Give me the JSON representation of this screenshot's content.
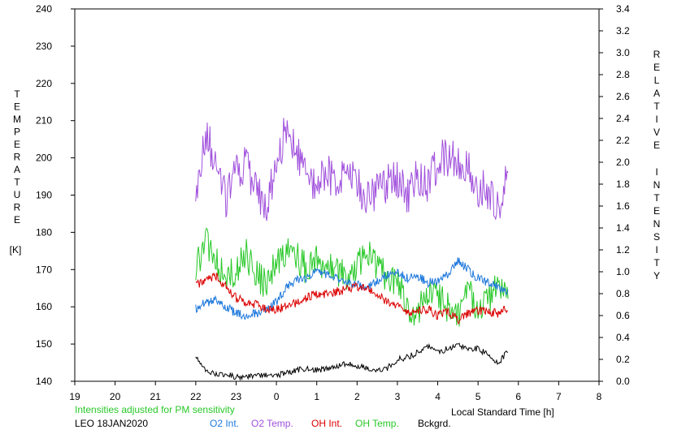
{
  "chart_data": {
    "type": "line",
    "left_axis": {
      "label_letters": [
        "T",
        "E",
        "M",
        "P",
        "E",
        "R",
        "A",
        "T",
        "U",
        "R",
        "E"
      ],
      "unit": "[K]",
      "range": [
        140,
        240
      ],
      "ticks": [
        "140",
        "150",
        "160",
        "170",
        "180",
        "190",
        "200",
        "210",
        "220",
        "230",
        "240"
      ]
    },
    "right_axis": {
      "label_word1": [
        "R",
        "E",
        "L",
        "A",
        "T",
        "I",
        "V",
        "E"
      ],
      "label_word2": [
        "I",
        "N",
        "T",
        "E",
        "N",
        "S",
        "I",
        "T",
        "Y"
      ],
      "range": [
        0.0,
        3.4
      ],
      "ticks": [
        "0.0",
        "0.2",
        "0.4",
        "0.6",
        "0.8",
        "1.0",
        "1.2",
        "1.4",
        "1.6",
        "1.8",
        "2.0",
        "2.2",
        "2.4",
        "2.6",
        "2.8",
        "3.0",
        "3.2",
        "3.4"
      ]
    },
    "x_axis": {
      "label": "Local Standard Time [h]",
      "range": [
        19,
        32
      ],
      "ticks": [
        "19",
        "20",
        "21",
        "22",
        "23",
        "0",
        "1",
        "2",
        "3",
        "4",
        "5",
        "6",
        "7",
        "8"
      ]
    },
    "note": "Intensities adjusted for PM sensitivity",
    "station": "LEO 18JAN2020",
    "legend": [
      {
        "label": "O2 Int.",
        "color": "#1e78dc"
      },
      {
        "label": "O2 Temp.",
        "color": "#a050dc"
      },
      {
        "label": "OH Int.",
        "color": "#dc0000"
      },
      {
        "label": "OH Temp.",
        "color": "#28c828"
      },
      {
        "label": "Bckgrd.",
        "color": "#000000"
      }
    ],
    "series": [
      {
        "name": "O2 Temp.",
        "axis": "left",
        "color": "#a050dc",
        "x": [
          22.0,
          22.25,
          22.5,
          22.75,
          23.0,
          23.25,
          23.5,
          23.75,
          24.0,
          24.25,
          24.5,
          24.75,
          25.0,
          25.25,
          25.5,
          25.75,
          26.0,
          26.25,
          26.5,
          26.75,
          27.0,
          27.25,
          27.5,
          27.75,
          28.0,
          28.25,
          28.5,
          28.75,
          29.0,
          29.25,
          29.5,
          29.75
        ],
        "y": [
          190,
          206,
          199,
          188,
          196,
          198,
          190,
          188,
          199,
          208,
          201,
          195,
          193,
          196,
          194,
          196,
          193,
          189,
          192,
          193,
          194,
          190,
          196,
          193,
          199,
          200,
          199,
          197,
          192,
          191,
          187,
          199
        ]
      },
      {
        "name": "OH Temp.",
        "axis": "left",
        "color": "#28c828",
        "x": [
          22.0,
          22.25,
          22.5,
          22.75,
          23.0,
          23.25,
          23.5,
          23.75,
          24.0,
          24.25,
          24.5,
          24.75,
          25.0,
          25.25,
          25.5,
          25.75,
          26.0,
          26.25,
          26.5,
          26.75,
          27.0,
          27.25,
          27.5,
          27.75,
          28.0,
          28.25,
          28.5,
          28.75,
          29.0,
          29.25,
          29.5,
          29.75
        ],
        "y": [
          170,
          178,
          172,
          169,
          170,
          174,
          168,
          166,
          172,
          176,
          174,
          170,
          172,
          171,
          170,
          168,
          171,
          175,
          170,
          168,
          167,
          160,
          158,
          164,
          162,
          160,
          158,
          164,
          160,
          162,
          166,
          162
        ]
      },
      {
        "name": "O2 Int.",
        "axis": "right",
        "color": "#1e78dc",
        "x": [
          22.0,
          22.25,
          22.5,
          22.75,
          23.0,
          23.25,
          23.5,
          23.75,
          24.0,
          24.25,
          24.5,
          24.75,
          25.0,
          25.25,
          25.5,
          25.75,
          26.0,
          26.25,
          26.5,
          26.75,
          27.0,
          27.25,
          27.5,
          27.75,
          28.0,
          28.25,
          28.5,
          28.75,
          29.0,
          29.25,
          29.5,
          29.75
        ],
        "y": [
          0.66,
          0.72,
          0.74,
          0.68,
          0.62,
          0.6,
          0.62,
          0.66,
          0.72,
          0.86,
          0.92,
          0.94,
          1.0,
          0.98,
          0.94,
          0.9,
          0.88,
          0.86,
          0.92,
          0.98,
          1.0,
          0.94,
          0.96,
          0.9,
          0.92,
          0.98,
          1.1,
          1.02,
          0.94,
          0.9,
          0.86,
          0.8
        ]
      },
      {
        "name": "OH Int.",
        "axis": "right",
        "color": "#dc0000",
        "x": [
          22.0,
          22.25,
          22.5,
          22.75,
          23.0,
          23.25,
          23.5,
          23.75,
          24.0,
          24.25,
          24.5,
          24.75,
          25.0,
          25.25,
          25.5,
          25.75,
          26.0,
          26.25,
          26.5,
          26.75,
          27.0,
          27.25,
          27.5,
          27.75,
          28.0,
          28.25,
          28.5,
          28.75,
          29.0,
          29.25,
          29.5,
          29.75
        ],
        "y": [
          0.88,
          0.92,
          0.96,
          0.86,
          0.76,
          0.72,
          0.7,
          0.66,
          0.66,
          0.68,
          0.72,
          0.76,
          0.8,
          0.8,
          0.82,
          0.84,
          0.86,
          0.84,
          0.8,
          0.72,
          0.68,
          0.62,
          0.64,
          0.66,
          0.6,
          0.64,
          0.56,
          0.62,
          0.64,
          0.64,
          0.62,
          0.66
        ]
      },
      {
        "name": "Bckgrd.",
        "axis": "right",
        "color": "#000000",
        "x": [
          22.0,
          22.25,
          22.5,
          22.75,
          23.0,
          23.25,
          23.5,
          23.75,
          24.0,
          24.25,
          24.5,
          24.75,
          25.0,
          25.25,
          25.5,
          25.75,
          26.0,
          26.25,
          26.5,
          26.75,
          27.0,
          27.25,
          27.5,
          27.75,
          28.0,
          28.25,
          28.5,
          28.75,
          29.0,
          29.25,
          29.5,
          29.75
        ],
        "y": [
          0.22,
          0.1,
          0.06,
          0.06,
          0.04,
          0.04,
          0.05,
          0.06,
          0.05,
          0.08,
          0.1,
          0.12,
          0.1,
          0.12,
          0.14,
          0.16,
          0.14,
          0.12,
          0.1,
          0.12,
          0.2,
          0.22,
          0.26,
          0.32,
          0.26,
          0.3,
          0.34,
          0.28,
          0.3,
          0.24,
          0.16,
          0.28
        ]
      }
    ]
  }
}
